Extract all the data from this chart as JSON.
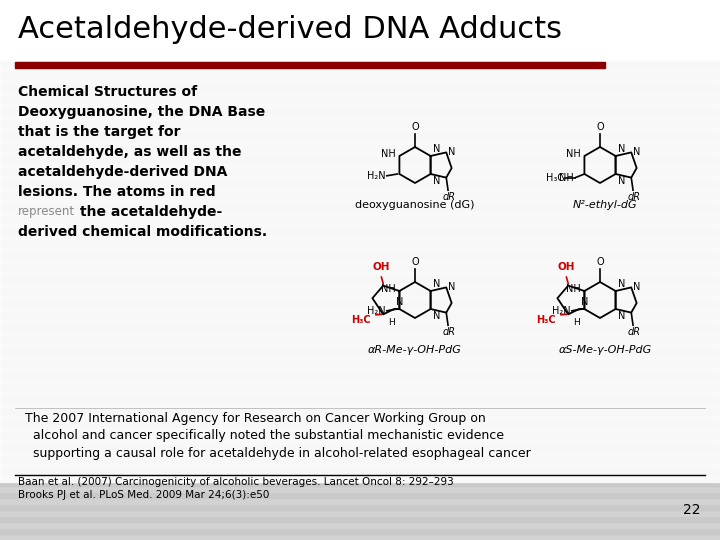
{
  "title": "Acetaldehyde-derived DNA Adducts",
  "title_fontsize": 22,
  "title_color": "#000000",
  "separator_color": "#8B0000",
  "bg_stripe1": "#D0D0D0",
  "bg_stripe2": "#C8C8C8",
  "left_text": "Chemical Structures of\nDeoxyguanosine, the DNA Base\nthat is the target for\nacetaldehyde, as well as the\nacetaldehyde-derived DNA\nlesions. The atoms in red\nrepresent the acetaldehyde-\nderived chemical modifications.",
  "represent_word": "represent",
  "bottom_text1": "  The 2007 International Agency for Research on Cancer Working Group on\n  alcohol and cancer specifically noted the substantial mechanistic evidence\n  supporting a causal role for acetaldehyde in alcohol-related esophageal cancer",
  "bottom_text2": "Baan et al. (2007) Carcinogenicity of alcoholic beverages. Lancet Oncol 8: 292–293\nBrooks PJ et al. PLoS Med. 2009 Mar 24;6(3):e50",
  "page_number": "22",
  "red_color": "#CC0000",
  "black": "#000000",
  "gray_text": "#888888",
  "label_dg": "deoxyguanosine (dG)",
  "label_n2": "N²-ethyl-dG",
  "label_aR": "αR-Me-γ-OH-PdG",
  "label_aS": "αS-Me-γ-OH-PdG"
}
